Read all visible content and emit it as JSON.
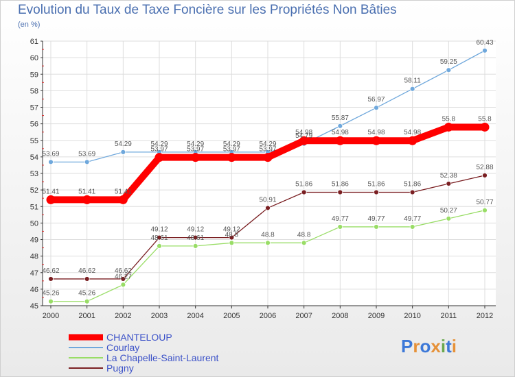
{
  "title": "Evolution du Taux de Taxe Foncière sur les Propriétés Non Bâties",
  "unit": "(en %)",
  "logo": "Proxiti",
  "chart_data": {
    "type": "line",
    "x": [
      "2000",
      "2001",
      "2002",
      "2003",
      "2004",
      "2005",
      "2006",
      "2007",
      "2008",
      "2009",
      "2010",
      "2011",
      "2012"
    ],
    "ylim": [
      45,
      61
    ],
    "yticks": [
      45,
      46,
      47,
      48,
      49,
      50,
      51,
      52,
      53,
      54,
      55,
      56,
      57,
      58,
      59,
      60,
      61
    ],
    "grid": true,
    "legend": "bottom-left",
    "series": [
      {
        "name": "CHANTELOUP",
        "color": "#ff0000",
        "emphasis": true,
        "values": [
          51.41,
          51.41,
          51.41,
          53.97,
          53.97,
          53.97,
          53.97,
          54.98,
          54.98,
          54.98,
          54.98,
          55.8,
          55.8
        ],
        "labels": [
          "51.41",
          "51.41",
          "51.41",
          "53.97",
          "53.97",
          "53.97",
          "53.97",
          "54.98",
          "54.98",
          "54.98",
          "54.98",
          "55.8",
          "55.8"
        ]
      },
      {
        "name": "Courlay",
        "color": "#6fa8dc",
        "values": [
          53.69,
          53.69,
          54.29,
          54.29,
          54.29,
          54.29,
          54.29,
          54.79,
          55.87,
          56.97,
          58.11,
          59.25,
          60.43
        ],
        "labels": [
          "53.69",
          "53.69",
          "54.29",
          "54.29",
          "54.29",
          "54.29",
          "54.29",
          "54.79",
          "55.87",
          "56.97",
          "58.11",
          "59.25",
          "60.43"
        ]
      },
      {
        "name": "La Chapelle-Saint-Laurent",
        "color": "#99dd66",
        "values": [
          45.26,
          45.26,
          46.27,
          48.61,
          48.61,
          48.8,
          48.8,
          48.8,
          49.77,
          49.77,
          49.77,
          50.27,
          50.77
        ],
        "labels": [
          "45.26",
          "45.26",
          "46.27",
          "48.61",
          "48.61",
          "48.8",
          "48.8",
          "48.8",
          "49.77",
          "49.77",
          "49.77",
          "50.27",
          "50.77"
        ]
      },
      {
        "name": "Pugny",
        "color": "#7a1f22",
        "values": [
          46.62,
          46.62,
          46.62,
          49.12,
          49.12,
          49.12,
          50.91,
          51.86,
          51.86,
          51.86,
          51.86,
          52.38,
          52.88
        ],
        "labels": [
          "46.62",
          "46.62",
          "46.62",
          "49.12",
          "49.12",
          "49.12",
          "50.91",
          "51.86",
          "51.86",
          "51.86",
          "51.86",
          "52.38",
          "52.88"
        ]
      }
    ]
  }
}
